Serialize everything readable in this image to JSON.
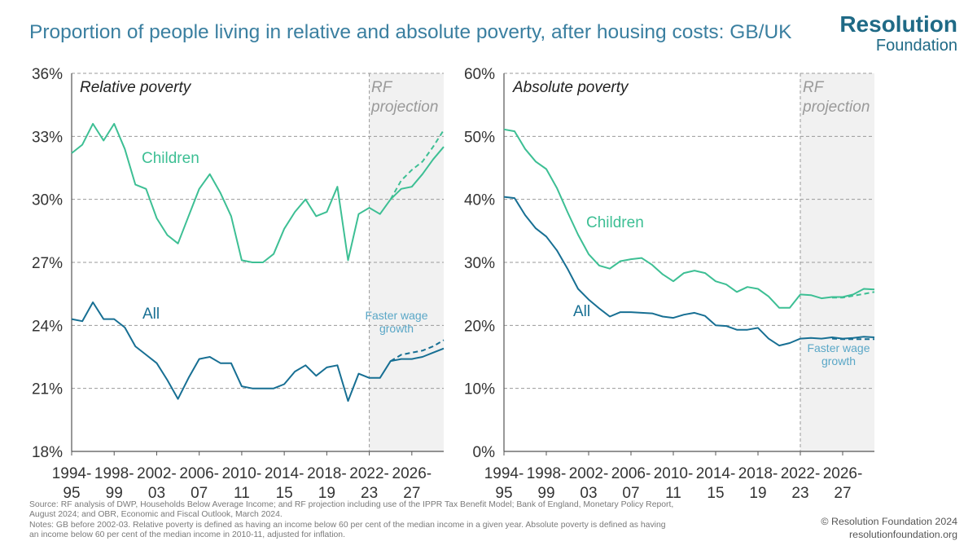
{
  "title": "Proportion of people living in relative and absolute poverty, after housing costs: GB/UK",
  "logo": {
    "line1": "Resolution",
    "line2": "Foundation"
  },
  "footer": {
    "source1": "Source: RF analysis of DWP, Households Below Average Income; and RF projection including use of the IPPR Tax Benefit Model; Bank of England, Monetary Policy Report,",
    "source2": "August 2024; and OBR, Economic and Fiscal Outlook, March 2024.",
    "notes1": "Notes: GB before 2002-03. Relative poverty is defined as having an income below 60 per cent of the median income in a given year. Absolute poverty is defined as having",
    "notes2": "an income below 60 per cent of the median income in 2010-11, adjusted for inflation.",
    "copyright": "© Resolution Foundation 2024",
    "website": "resolutionfoundation.org"
  },
  "colors": {
    "children": "#3dbf94",
    "all": "#176f93",
    "shade": "#f1f1f1",
    "grid": "#9a9a9a",
    "projection_text": "#9a9a9a"
  },
  "chart_data": [
    {
      "type": "line",
      "title": "Relative poverty",
      "ylim": [
        18,
        36
      ],
      "yticks": [
        18,
        21,
        24,
        27,
        30,
        33,
        36
      ],
      "ytick_labels": [
        "18%",
        "21%",
        "24%",
        "27%",
        "30%",
        "33%",
        "36%"
      ],
      "xlim": [
        1994,
        2029
      ],
      "xticks": [
        {
          "year": 1994,
          "line1": "1994-",
          "line2": "95"
        },
        {
          "year": 1998,
          "line1": "1998-",
          "line2": "99"
        },
        {
          "year": 2002,
          "line1": "2002-",
          "line2": "03"
        },
        {
          "year": 2006,
          "line1": "2006-",
          "line2": "07"
        },
        {
          "year": 2010,
          "line1": "2010-",
          "line2": "11"
        },
        {
          "year": 2014,
          "line1": "2014-",
          "line2": "15"
        },
        {
          "year": 2018,
          "line1": "2018-",
          "line2": "19"
        },
        {
          "year": 2022,
          "line1": "2022-",
          "line2": "23"
        },
        {
          "year": 2026,
          "line1": "2026-",
          "line2": "27"
        }
      ],
      "projection_start": 2022,
      "projection_label": [
        "RF",
        "projection"
      ],
      "x": [
        1994,
        1995,
        1996,
        1997,
        1998,
        1999,
        2000,
        2001,
        2002,
        2003,
        2004,
        2005,
        2006,
        2007,
        2008,
        2009,
        2010,
        2011,
        2012,
        2013,
        2014,
        2015,
        2016,
        2017,
        2018,
        2019,
        2020,
        2021,
        2022,
        2023,
        2024,
        2025,
        2026,
        2027,
        2028,
        2029
      ],
      "series": [
        {
          "name": "Children",
          "label": "Children",
          "values": [
            32.2,
            32.6,
            33.6,
            32.8,
            33.6,
            32.4,
            30.7,
            30.5,
            29.1,
            28.3,
            27.9,
            29.2,
            30.5,
            31.2,
            30.3,
            29.2,
            27.1,
            27.0,
            27.0,
            27.4,
            28.6,
            29.4,
            30.0,
            29.2,
            29.4,
            30.6,
            27.1,
            29.3,
            29.6,
            29.3,
            30.0,
            30.5,
            30.6,
            31.2,
            31.9,
            32.5
          ]
        },
        {
          "name": "Children - faster wage growth",
          "x": [
            2024,
            2025,
            2026,
            2027,
            2028,
            2029
          ],
          "values": [
            30.0,
            30.9,
            31.4,
            31.8,
            32.5,
            33.3
          ]
        },
        {
          "name": "All",
          "label": "All",
          "values": [
            24.3,
            24.2,
            25.1,
            24.3,
            24.3,
            23.9,
            23.0,
            22.6,
            22.2,
            21.4,
            20.5,
            21.5,
            22.4,
            22.5,
            22.2,
            22.2,
            21.1,
            21.0,
            21.0,
            21.0,
            21.2,
            21.8,
            22.1,
            21.6,
            22.0,
            22.1,
            20.4,
            21.7,
            21.5,
            21.5,
            22.3,
            22.4,
            22.4,
            22.5,
            22.7,
            22.9
          ]
        },
        {
          "name": "All - faster wage growth",
          "x": [
            2024,
            2025,
            2026,
            2027,
            2028,
            2029
          ],
          "values": [
            22.3,
            22.6,
            22.7,
            22.8,
            23.0,
            23.3
          ]
        }
      ],
      "annotation": [
        "Faster wage",
        "growth"
      ]
    },
    {
      "type": "line",
      "title": "Absolute poverty",
      "ylim": [
        0,
        60
      ],
      "yticks": [
        0,
        10,
        20,
        30,
        40,
        50,
        60
      ],
      "ytick_labels": [
        "0%",
        "10%",
        "20%",
        "30%",
        "40%",
        "50%",
        "60%"
      ],
      "xlim": [
        1994,
        2029
      ],
      "xticks": [
        {
          "year": 1994,
          "line1": "1994-",
          "line2": "95"
        },
        {
          "year": 1998,
          "line1": "1998-",
          "line2": "99"
        },
        {
          "year": 2002,
          "line1": "2002-",
          "line2": "03"
        },
        {
          "year": 2006,
          "line1": "2006-",
          "line2": "07"
        },
        {
          "year": 2010,
          "line1": "2010-",
          "line2": "11"
        },
        {
          "year": 2014,
          "line1": "2014-",
          "line2": "15"
        },
        {
          "year": 2018,
          "line1": "2018-",
          "line2": "19"
        },
        {
          "year": 2022,
          "line1": "2022-",
          "line2": "23"
        },
        {
          "year": 2026,
          "line1": "2026-",
          "line2": "27"
        }
      ],
      "projection_start": 2022,
      "projection_label": [
        "RF",
        "projection"
      ],
      "x": [
        1994,
        1995,
        1996,
        1997,
        1998,
        1999,
        2000,
        2001,
        2002,
        2003,
        2004,
        2005,
        2006,
        2007,
        2008,
        2009,
        2010,
        2011,
        2012,
        2013,
        2014,
        2015,
        2016,
        2017,
        2018,
        2019,
        2020,
        2021,
        2022,
        2023,
        2024,
        2025,
        2026,
        2027,
        2028,
        2029
      ],
      "series": [
        {
          "name": "Children",
          "label": "Children",
          "values": [
            51.1,
            50.8,
            48.0,
            46.0,
            44.8,
            41.8,
            38.0,
            34.4,
            31.3,
            29.5,
            29.0,
            30.2,
            30.5,
            30.7,
            29.6,
            28.1,
            27.0,
            28.3,
            28.7,
            28.3,
            27.0,
            26.5,
            25.3,
            26.1,
            25.8,
            24.6,
            22.8,
            22.8,
            24.9,
            24.8,
            24.3,
            24.5,
            24.5,
            24.9,
            25.8,
            25.7
          ]
        },
        {
          "name": "Children - faster wage growth",
          "x": [
            2025,
            2026,
            2027,
            2028,
            2029
          ],
          "values": [
            24.4,
            24.4,
            24.7,
            25.0,
            25.3
          ]
        },
        {
          "name": "All",
          "label": "All",
          "values": [
            40.4,
            40.2,
            37.5,
            35.4,
            34.1,
            31.9,
            29.0,
            25.8,
            24.1,
            22.7,
            21.4,
            22.1,
            22.1,
            22.0,
            21.9,
            21.4,
            21.2,
            21.7,
            22.0,
            21.5,
            20.0,
            19.9,
            19.3,
            19.3,
            19.6,
            17.9,
            16.8,
            17.2,
            17.9,
            18.0,
            17.9,
            18.1,
            17.9,
            18.0,
            18.2,
            18.1
          ]
        },
        {
          "name": "All - faster wage growth",
          "x": [
            2025,
            2026,
            2027,
            2028,
            2029
          ],
          "values": [
            17.9,
            17.8,
            17.8,
            17.8,
            17.8
          ]
        }
      ],
      "annotation": [
        "Faster wage",
        "growth"
      ]
    }
  ]
}
